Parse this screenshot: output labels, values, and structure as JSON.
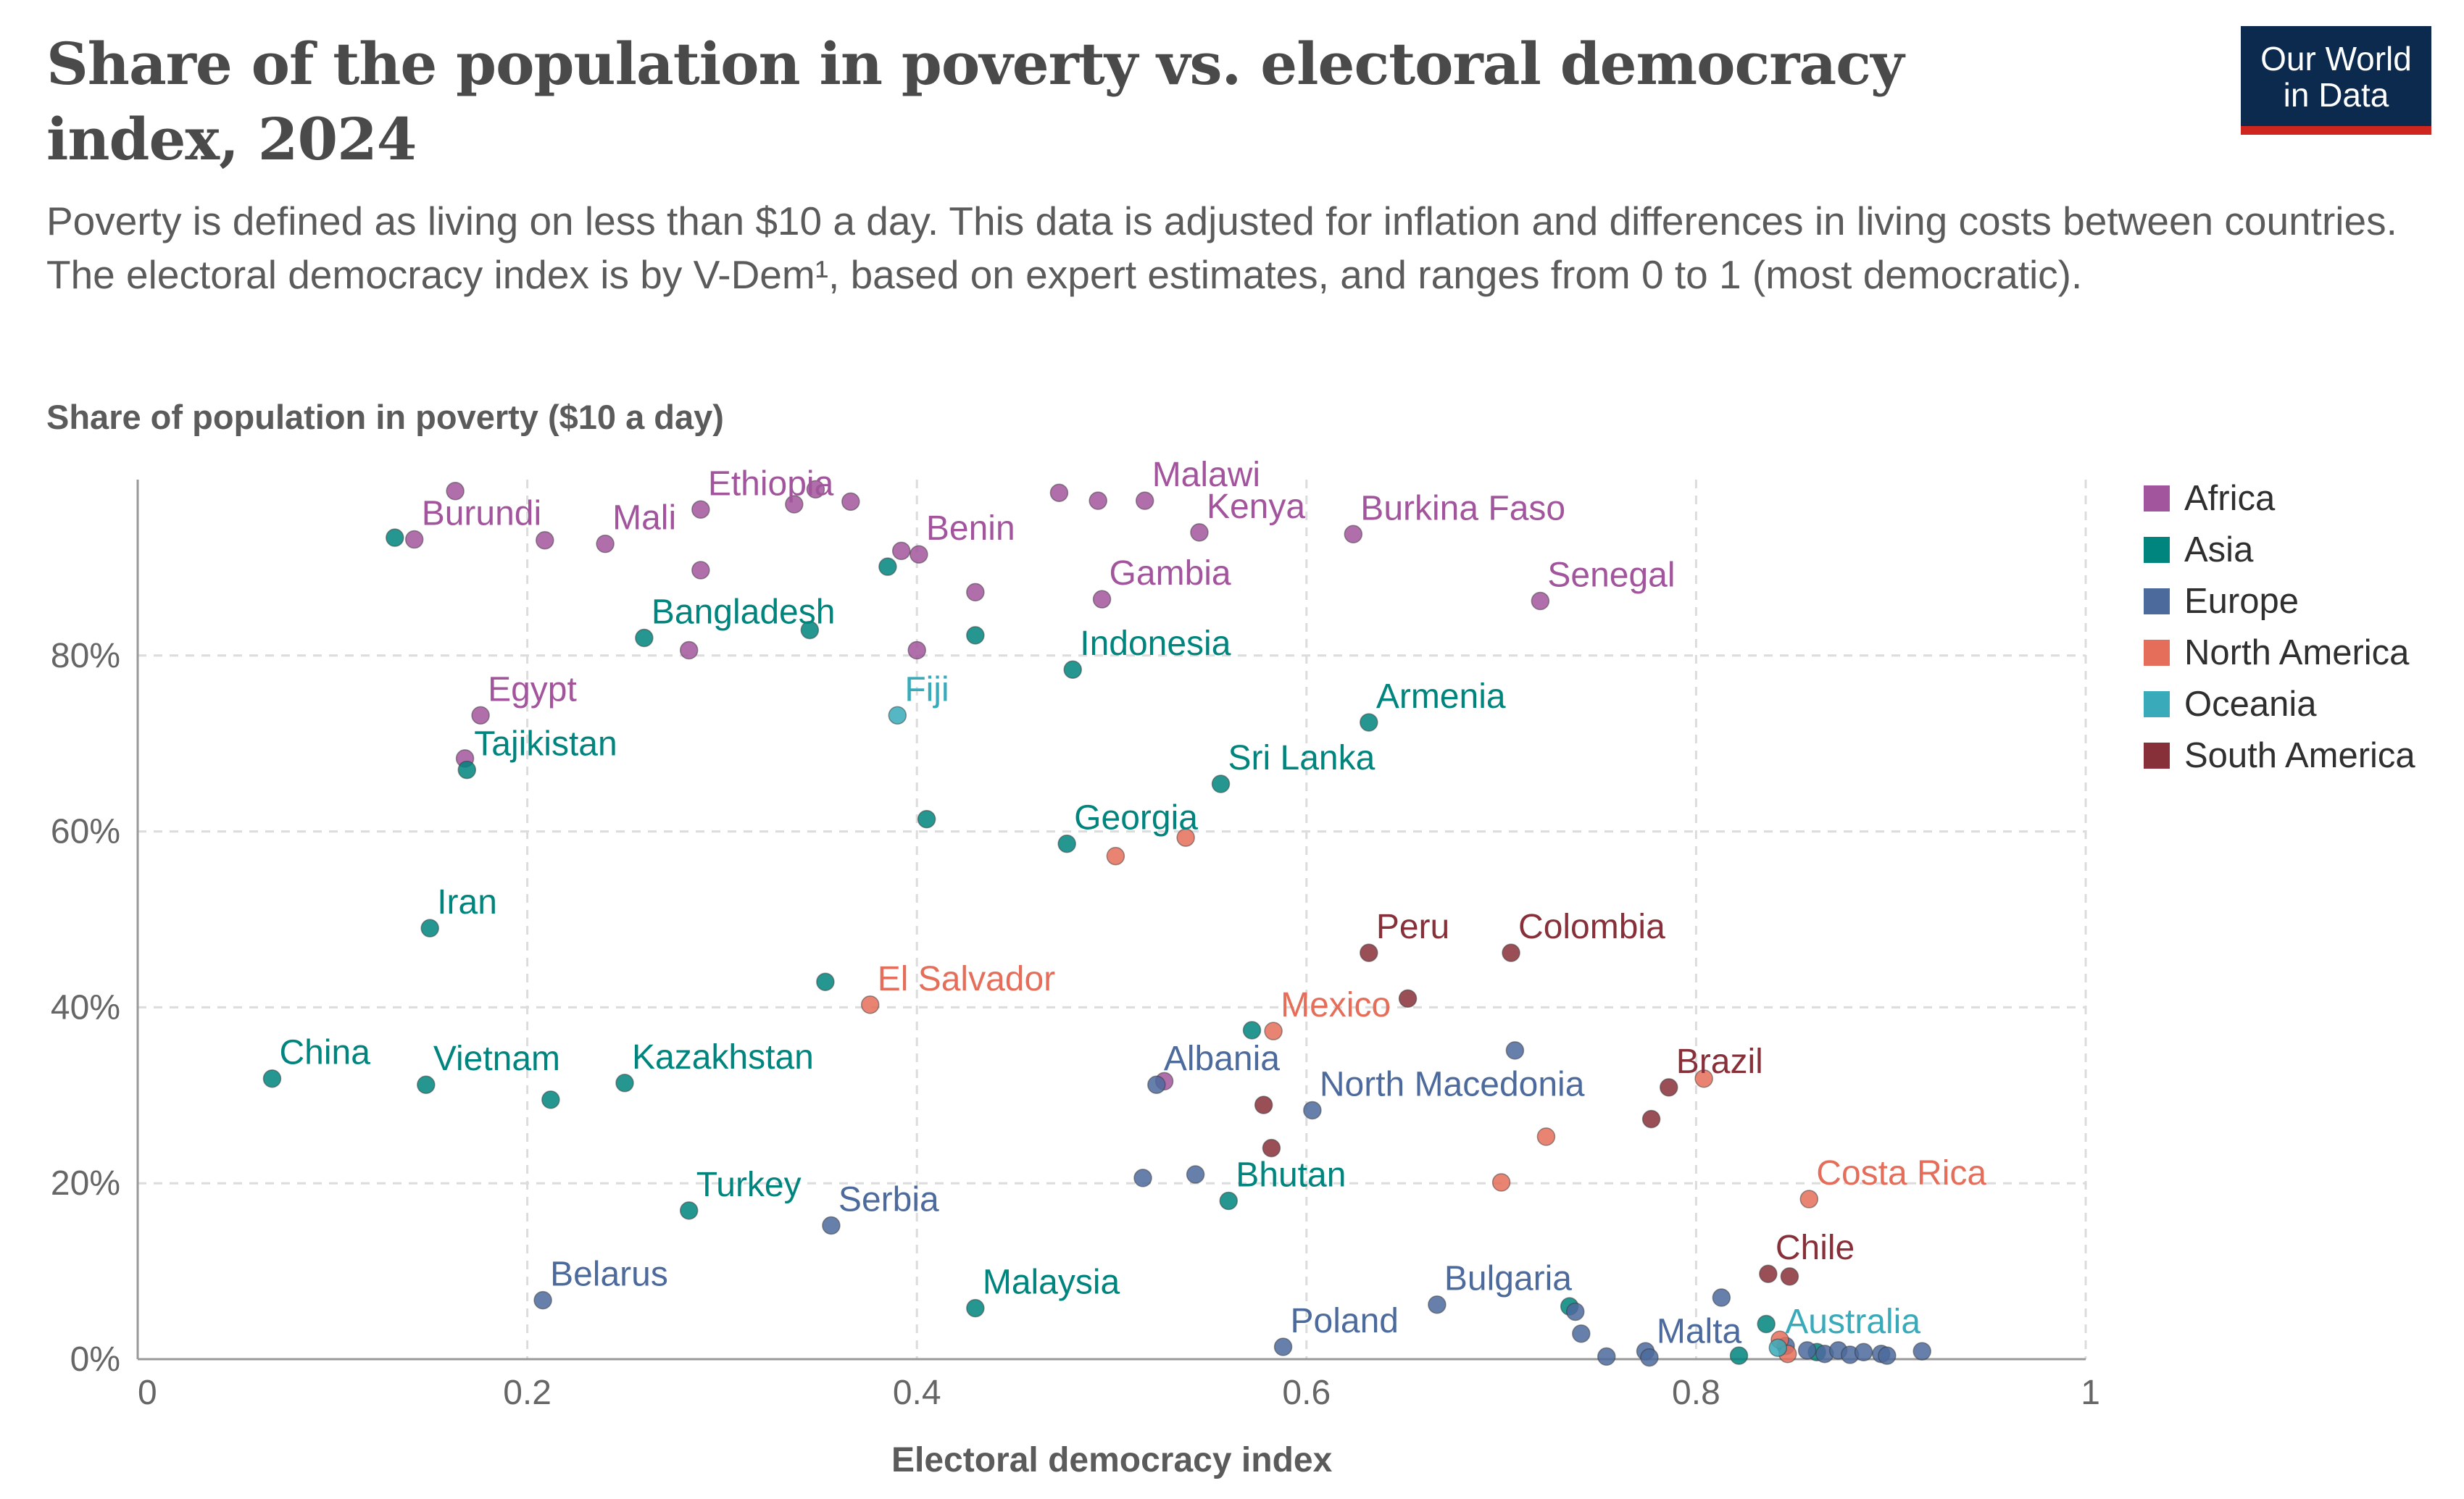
{
  "logo": {
    "line1": "Our World",
    "line2": "in Data"
  },
  "chart_data": {
    "type": "scatter",
    "title": "Share of the population in poverty vs. electoral democracy index, 2024",
    "subtitle": "Poverty is defined as living on less than $10 a day. This data is adjusted for inflation and differences in living costs between countries. The electoral democracy index is by V-Dem¹, based on expert estimates, and ranges from 0 to 1 (most democratic).",
    "xlabel": "Electoral democracy index",
    "ylabel": "Share of population in poverty ($10 a day)",
    "xlim": [
      0,
      1
    ],
    "ylim": [
      0,
      100
    ],
    "x_ticks": [
      {
        "value": 0,
        "label": "0"
      },
      {
        "value": 0.2,
        "label": "0.2"
      },
      {
        "value": 0.4,
        "label": "0.4"
      },
      {
        "value": 0.6,
        "label": "0.6"
      },
      {
        "value": 0.8,
        "label": "0.8"
      },
      {
        "value": 1,
        "label": "1"
      }
    ],
    "y_ticks": [
      {
        "value": 0,
        "label": "0%"
      },
      {
        "value": 20,
        "label": "20%"
      },
      {
        "value": 40,
        "label": "40%"
      },
      {
        "value": 60,
        "label": "60%"
      },
      {
        "value": 80,
        "label": "80%"
      }
    ],
    "grid": true,
    "legend_position": "right",
    "colors": {
      "Africa": "#a2559c",
      "Asia": "#00847e",
      "Europe": "#4c6a9c",
      "North America": "#e56e5a",
      "Oceania": "#38aaba",
      "South America": "#883039"
    },
    "series": [
      {
        "name": "Africa",
        "points": [
          {
            "x": 0.163,
            "y": 98.7
          },
          {
            "x": 0.142,
            "y": 93.2,
            "label": "Burundi"
          },
          {
            "x": 0.209,
            "y": 93.1
          },
          {
            "x": 0.24,
            "y": 92.7,
            "label": "Mali"
          },
          {
            "x": 0.289,
            "y": 96.6,
            "label": "Ethiopia"
          },
          {
            "x": 0.337,
            "y": 97.2
          },
          {
            "x": 0.348,
            "y": 98.9
          },
          {
            "x": 0.366,
            "y": 97.5
          },
          {
            "x": 0.392,
            "y": 91.9
          },
          {
            "x": 0.401,
            "y": 91.5,
            "label": "Benin"
          },
          {
            "x": 0.289,
            "y": 89.7
          },
          {
            "x": 0.43,
            "y": 87.2
          },
          {
            "x": 0.473,
            "y": 98.5
          },
          {
            "x": 0.493,
            "y": 97.6
          },
          {
            "x": 0.517,
            "y": 97.6,
            "label": "Malawi"
          },
          {
            "x": 0.545,
            "y": 94.0,
            "label": "Kenya"
          },
          {
            "x": 0.624,
            "y": 93.8,
            "label": "Burkina Faso"
          },
          {
            "x": 0.495,
            "y": 86.4,
            "label": "Gambia"
          },
          {
            "x": 0.72,
            "y": 86.2,
            "label": "Senegal"
          },
          {
            "x": 0.283,
            "y": 80.6
          },
          {
            "x": 0.4,
            "y": 80.6
          },
          {
            "x": 0.176,
            "y": 73.2,
            "label": "Egypt"
          },
          {
            "x": 0.168,
            "y": 68.3
          },
          {
            "x": 0.527,
            "y": 31.6
          }
        ]
      },
      {
        "name": "Asia",
        "points": [
          {
            "x": 0.132,
            "y": 93.4
          },
          {
            "x": 0.385,
            "y": 90.1
          },
          {
            "x": 0.26,
            "y": 82.0,
            "label": "Bangladesh"
          },
          {
            "x": 0.345,
            "y": 82.9
          },
          {
            "x": 0.43,
            "y": 82.3
          },
          {
            "x": 0.48,
            "y": 78.4,
            "label": "Indonesia"
          },
          {
            "x": 0.632,
            "y": 72.4,
            "label": "Armenia"
          },
          {
            "x": 0.169,
            "y": 67.0,
            "label": "Tajikistan"
          },
          {
            "x": 0.556,
            "y": 65.4,
            "label": "Sri Lanka"
          },
          {
            "x": 0.405,
            "y": 61.4
          },
          {
            "x": 0.477,
            "y": 58.6,
            "label": "Georgia"
          },
          {
            "x": 0.15,
            "y": 49.0,
            "label": "Iran"
          },
          {
            "x": 0.353,
            "y": 42.9
          },
          {
            "x": 0.572,
            "y": 37.4
          },
          {
            "x": 0.069,
            "y": 31.9,
            "label": "China"
          },
          {
            "x": 0.148,
            "y": 31.2,
            "label": "Vietnam"
          },
          {
            "x": 0.212,
            "y": 29.5
          },
          {
            "x": 0.25,
            "y": 31.4,
            "label": "Kazakhstan"
          },
          {
            "x": 0.283,
            "y": 16.9,
            "label": "Turkey"
          },
          {
            "x": 0.56,
            "y": 18.0,
            "label": "Bhutan"
          },
          {
            "x": 0.43,
            "y": 5.8,
            "label": "Malaysia"
          },
          {
            "x": 0.735,
            "y": 6.0
          },
          {
            "x": 0.836,
            "y": 4.0
          },
          {
            "x": 0.822,
            "y": 0.4
          },
          {
            "x": 0.862,
            "y": 0.8
          }
        ]
      },
      {
        "name": "Europe",
        "points": [
          {
            "x": 0.707,
            "y": 35.1
          },
          {
            "x": 0.523,
            "y": 31.2,
            "label": "Albania"
          },
          {
            "x": 0.603,
            "y": 28.3,
            "label": "North Macedonia"
          },
          {
            "x": 0.516,
            "y": 20.6
          },
          {
            "x": 0.543,
            "y": 21.0
          },
          {
            "x": 0.356,
            "y": 15.2,
            "label": "Serbia"
          },
          {
            "x": 0.208,
            "y": 6.7,
            "label": "Belarus"
          },
          {
            "x": 0.667,
            "y": 6.2,
            "label": "Bulgaria"
          },
          {
            "x": 0.738,
            "y": 5.4
          },
          {
            "x": 0.741,
            "y": 2.9
          },
          {
            "x": 0.588,
            "y": 1.4,
            "label": "Poland"
          },
          {
            "x": 0.754,
            "y": 0.3
          },
          {
            "x": 0.774,
            "y": 0.9
          },
          {
            "x": 0.776,
            "y": 0.2,
            "label": "Malta"
          },
          {
            "x": 0.813,
            "y": 7.0
          },
          {
            "x": 0.846,
            "y": 1.5
          },
          {
            "x": 0.857,
            "y": 1.0
          },
          {
            "x": 0.866,
            "y": 0.6
          },
          {
            "x": 0.873,
            "y": 1.0
          },
          {
            "x": 0.879,
            "y": 0.5
          },
          {
            "x": 0.886,
            "y": 0.8
          },
          {
            "x": 0.895,
            "y": 0.6
          },
          {
            "x": 0.898,
            "y": 0.4
          },
          {
            "x": 0.916,
            "y": 0.9
          }
        ]
      },
      {
        "name": "North America",
        "points": [
          {
            "x": 0.502,
            "y": 57.2
          },
          {
            "x": 0.538,
            "y": 59.3
          },
          {
            "x": 0.376,
            "y": 40.3,
            "label": "El Salvador"
          },
          {
            "x": 0.583,
            "y": 37.3,
            "label": "Mexico"
          },
          {
            "x": 0.723,
            "y": 25.3
          },
          {
            "x": 0.7,
            "y": 20.1
          },
          {
            "x": 0.858,
            "y": 18.2,
            "label": "Costa Rica"
          },
          {
            "x": 0.804,
            "y": 31.9
          },
          {
            "x": 0.843,
            "y": 2.2
          },
          {
            "x": 0.847,
            "y": 0.6
          }
        ]
      },
      {
        "name": "Oceania",
        "points": [
          {
            "x": 0.39,
            "y": 73.2,
            "label": "Fiji"
          },
          {
            "x": 0.842,
            "y": 1.3,
            "label": "Australia"
          }
        ]
      },
      {
        "name": "South America",
        "points": [
          {
            "x": 0.632,
            "y": 46.2,
            "label": "Peru"
          },
          {
            "x": 0.705,
            "y": 46.2,
            "label": "Colombia"
          },
          {
            "x": 0.652,
            "y": 41.0
          },
          {
            "x": 0.786,
            "y": 30.9,
            "label": "Brazil"
          },
          {
            "x": 0.578,
            "y": 28.9
          },
          {
            "x": 0.582,
            "y": 24.0
          },
          {
            "x": 0.777,
            "y": 27.3
          },
          {
            "x": 0.837,
            "y": 9.7,
            "label": "Chile"
          },
          {
            "x": 0.848,
            "y": 9.4
          }
        ]
      }
    ]
  }
}
